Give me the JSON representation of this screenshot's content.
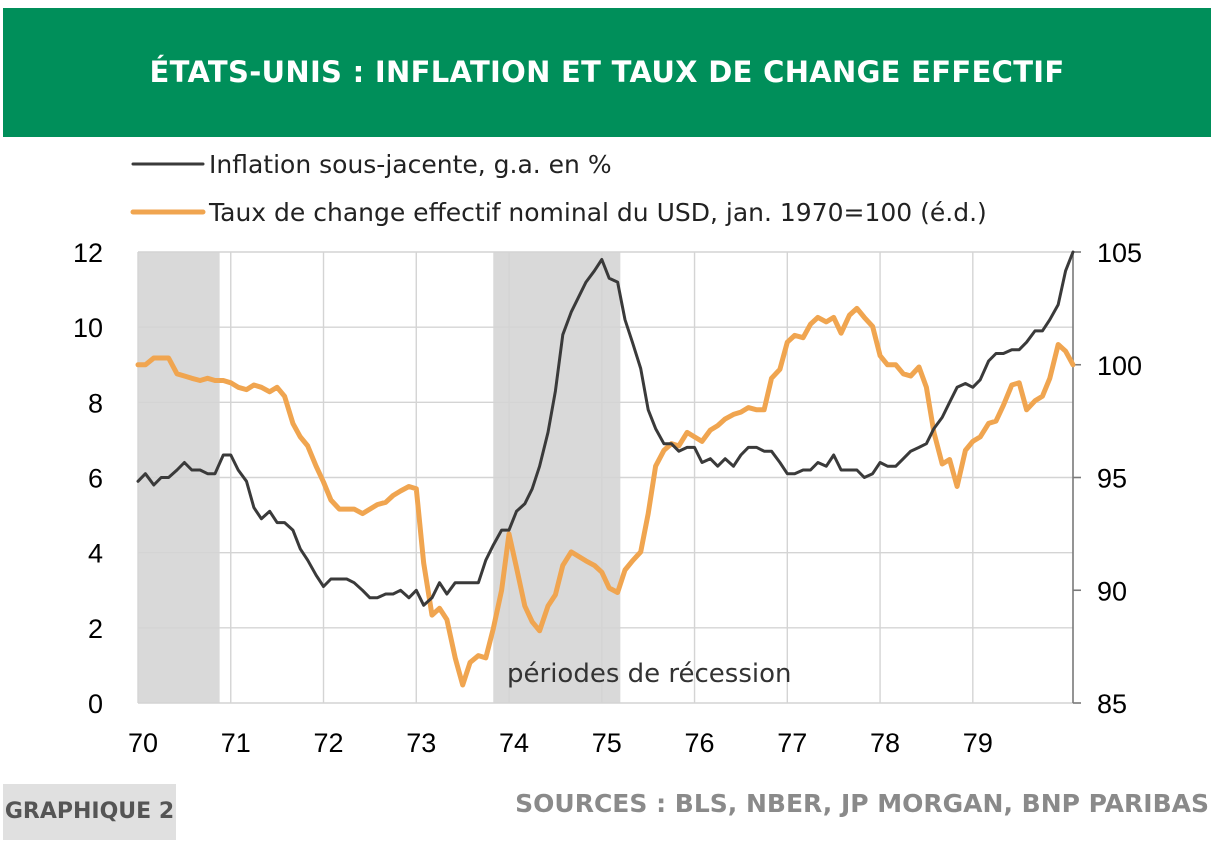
{
  "header": {
    "title": "ÉTATS-UNIS : INFLATION ET TAUX DE CHANGE EFFECTIF",
    "background": "#008f5a"
  },
  "footer": {
    "badge": "GRAPHIQUE 2",
    "sources": "SOURCES : BLS, NBER, JP MORGAN, BNP PARIBAS"
  },
  "chart_data": {
    "type": "line",
    "title": "ÉTATS-UNIS : INFLATION ET TAUX DE CHANGE EFFECTIF",
    "x_tick_labels": [
      "70",
      "71",
      "72",
      "73",
      "74",
      "75",
      "76",
      "77",
      "78",
      "79"
    ],
    "y_left": {
      "ticks": [
        "0",
        "2",
        "4",
        "6",
        "8",
        "10",
        "12"
      ],
      "range": [
        0,
        12
      ]
    },
    "y_right": {
      "ticks": [
        "85",
        "90",
        "95",
        "100",
        "105"
      ],
      "range": [
        85,
        105
      ]
    },
    "grid": true,
    "legend_position": "top-left",
    "annotation": "périodes de récession",
    "recessions": [
      [
        1970.0,
        1970.88
      ],
      [
        1973.83,
        1975.2
      ]
    ],
    "series": [
      {
        "name": "Inflation sous-jacente, g.a. en %",
        "axis": "left",
        "color": "#3a3a3a",
        "points": [
          [
            1970.0,
            5.9
          ],
          [
            1970.08,
            6.1
          ],
          [
            1970.17,
            5.8
          ],
          [
            1970.25,
            6.0
          ],
          [
            1970.33,
            6.0
          ],
          [
            1970.42,
            6.2
          ],
          [
            1970.5,
            6.4
          ],
          [
            1970.58,
            6.2
          ],
          [
            1970.67,
            6.2
          ],
          [
            1970.75,
            6.1
          ],
          [
            1970.83,
            6.1
          ],
          [
            1970.92,
            6.6
          ],
          [
            1971.0,
            6.6
          ],
          [
            1971.08,
            6.2
          ],
          [
            1971.17,
            5.9
          ],
          [
            1971.25,
            5.2
          ],
          [
            1971.33,
            4.9
          ],
          [
            1971.42,
            5.1
          ],
          [
            1971.5,
            4.8
          ],
          [
            1971.58,
            4.8
          ],
          [
            1971.67,
            4.6
          ],
          [
            1971.75,
            4.1
          ],
          [
            1971.83,
            3.8
          ],
          [
            1971.92,
            3.4
          ],
          [
            1972.0,
            3.1
          ],
          [
            1972.08,
            3.3
          ],
          [
            1972.17,
            3.3
          ],
          [
            1972.25,
            3.3
          ],
          [
            1972.33,
            3.2
          ],
          [
            1972.42,
            3.0
          ],
          [
            1972.5,
            2.8
          ],
          [
            1972.58,
            2.8
          ],
          [
            1972.67,
            2.9
          ],
          [
            1972.75,
            2.9
          ],
          [
            1972.83,
            3.0
          ],
          [
            1972.92,
            2.8
          ],
          [
            1973.0,
            3.0
          ],
          [
            1973.08,
            2.6
          ],
          [
            1973.17,
            2.8
          ],
          [
            1973.25,
            3.2
          ],
          [
            1973.33,
            2.9
          ],
          [
            1973.42,
            3.2
          ],
          [
            1973.5,
            3.2
          ],
          [
            1973.58,
            3.2
          ],
          [
            1973.67,
            3.2
          ],
          [
            1973.75,
            3.8
          ],
          [
            1973.83,
            4.2
          ],
          [
            1973.92,
            4.6
          ],
          [
            1974.0,
            4.6
          ],
          [
            1974.08,
            5.1
          ],
          [
            1974.17,
            5.3
          ],
          [
            1974.25,
            5.7
          ],
          [
            1974.33,
            6.3
          ],
          [
            1974.42,
            7.2
          ],
          [
            1974.5,
            8.3
          ],
          [
            1974.58,
            9.8
          ],
          [
            1974.67,
            10.4
          ],
          [
            1974.75,
            10.8
          ],
          [
            1974.83,
            11.2
          ],
          [
            1974.92,
            11.5
          ],
          [
            1975.0,
            11.8
          ],
          [
            1975.08,
            11.3
          ],
          [
            1975.17,
            11.2
          ],
          [
            1975.25,
            10.2
          ],
          [
            1975.33,
            9.6
          ],
          [
            1975.42,
            8.9
          ],
          [
            1975.5,
            7.8
          ],
          [
            1975.58,
            7.3
          ],
          [
            1975.67,
            6.9
          ],
          [
            1975.75,
            6.9
          ],
          [
            1975.83,
            6.7
          ],
          [
            1975.92,
            6.8
          ],
          [
            1976.0,
            6.8
          ],
          [
            1976.08,
            6.4
          ],
          [
            1976.17,
            6.5
          ],
          [
            1976.25,
            6.3
          ],
          [
            1976.33,
            6.5
          ],
          [
            1976.42,
            6.3
          ],
          [
            1976.5,
            6.6
          ],
          [
            1976.58,
            6.8
          ],
          [
            1976.67,
            6.8
          ],
          [
            1976.75,
            6.7
          ],
          [
            1976.83,
            6.7
          ],
          [
            1976.92,
            6.4
          ],
          [
            1977.0,
            6.1
          ],
          [
            1977.08,
            6.1
          ],
          [
            1977.17,
            6.2
          ],
          [
            1977.25,
            6.2
          ],
          [
            1977.33,
            6.4
          ],
          [
            1977.42,
            6.3
          ],
          [
            1977.5,
            6.6
          ],
          [
            1977.58,
            6.2
          ],
          [
            1977.67,
            6.2
          ],
          [
            1977.75,
            6.2
          ],
          [
            1977.83,
            6.0
          ],
          [
            1977.92,
            6.1
          ],
          [
            1978.0,
            6.4
          ],
          [
            1978.08,
            6.3
          ],
          [
            1978.17,
            6.3
          ],
          [
            1978.25,
            6.5
          ],
          [
            1978.33,
            6.7
          ],
          [
            1978.42,
            6.8
          ],
          [
            1978.5,
            6.9
          ],
          [
            1978.58,
            7.3
          ],
          [
            1978.67,
            7.6
          ],
          [
            1978.75,
            8.0
          ],
          [
            1978.83,
            8.4
          ],
          [
            1978.92,
            8.5
          ],
          [
            1979.0,
            8.4
          ],
          [
            1979.08,
            8.6
          ],
          [
            1979.17,
            9.1
          ],
          [
            1979.25,
            9.3
          ],
          [
            1979.33,
            9.3
          ],
          [
            1979.42,
            9.4
          ],
          [
            1979.5,
            9.4
          ],
          [
            1979.58,
            9.6
          ],
          [
            1979.67,
            9.9
          ],
          [
            1979.75,
            9.9
          ],
          [
            1979.83,
            10.2
          ],
          [
            1979.92,
            10.6
          ],
          [
            1980.0,
            11.5
          ],
          [
            1980.08,
            12.0
          ]
        ]
      },
      {
        "name": "Taux de change effectif nominal du USD, jan. 1970=100 (é.d.)",
        "axis": "right",
        "color": "#f0a550",
        "points": [
          [
            1970.0,
            100.0
          ],
          [
            1970.08,
            100.0
          ],
          [
            1970.17,
            100.3
          ],
          [
            1970.25,
            100.3
          ],
          [
            1970.33,
            100.3
          ],
          [
            1970.42,
            99.6
          ],
          [
            1970.5,
            99.5
          ],
          [
            1970.58,
            99.4
          ],
          [
            1970.67,
            99.3
          ],
          [
            1970.75,
            99.4
          ],
          [
            1970.83,
            99.3
          ],
          [
            1970.92,
            99.3
          ],
          [
            1971.0,
            99.2
          ],
          [
            1971.08,
            99.0
          ],
          [
            1971.17,
            98.9
          ],
          [
            1971.25,
            99.1
          ],
          [
            1971.33,
            99.0
          ],
          [
            1971.42,
            98.8
          ],
          [
            1971.5,
            99.0
          ],
          [
            1971.58,
            98.6
          ],
          [
            1971.67,
            97.4
          ],
          [
            1971.75,
            96.8
          ],
          [
            1971.83,
            96.4
          ],
          [
            1971.92,
            95.5
          ],
          [
            1972.0,
            94.8
          ],
          [
            1972.08,
            94.0
          ],
          [
            1972.17,
            93.6
          ],
          [
            1972.25,
            93.6
          ],
          [
            1972.33,
            93.6
          ],
          [
            1972.42,
            93.4
          ],
          [
            1972.5,
            93.6
          ],
          [
            1972.58,
            93.8
          ],
          [
            1972.67,
            93.9
          ],
          [
            1972.75,
            94.2
          ],
          [
            1972.83,
            94.4
          ],
          [
            1972.92,
            94.6
          ],
          [
            1973.0,
            94.5
          ],
          [
            1973.08,
            91.2
          ],
          [
            1973.17,
            88.9
          ],
          [
            1973.25,
            89.2
          ],
          [
            1973.33,
            88.7
          ],
          [
            1973.42,
            87.0
          ],
          [
            1973.5,
            85.8
          ],
          [
            1973.58,
            86.8
          ],
          [
            1973.67,
            87.1
          ],
          [
            1973.75,
            87.0
          ],
          [
            1973.83,
            88.3
          ],
          [
            1973.92,
            90.0
          ],
          [
            1974.0,
            92.5
          ],
          [
            1974.08,
            91.0
          ],
          [
            1974.17,
            89.3
          ],
          [
            1974.25,
            88.6
          ],
          [
            1974.33,
            88.2
          ],
          [
            1974.42,
            89.3
          ],
          [
            1974.5,
            89.8
          ],
          [
            1974.58,
            91.1
          ],
          [
            1974.67,
            91.7
          ],
          [
            1974.75,
            91.5
          ],
          [
            1974.83,
            91.3
          ],
          [
            1974.92,
            91.1
          ],
          [
            1975.0,
            90.8
          ],
          [
            1975.08,
            90.1
          ],
          [
            1975.17,
            89.9
          ],
          [
            1975.25,
            90.9
          ],
          [
            1975.33,
            91.3
          ],
          [
            1975.42,
            91.7
          ],
          [
            1975.5,
            93.4
          ],
          [
            1975.58,
            95.5
          ],
          [
            1975.67,
            96.2
          ],
          [
            1975.75,
            96.5
          ],
          [
            1975.83,
            96.4
          ],
          [
            1975.92,
            97.0
          ],
          [
            1976.0,
            96.8
          ],
          [
            1976.08,
            96.6
          ],
          [
            1976.17,
            97.1
          ],
          [
            1976.25,
            97.3
          ],
          [
            1976.33,
            97.6
          ],
          [
            1976.42,
            97.8
          ],
          [
            1976.5,
            97.9
          ],
          [
            1976.58,
            98.1
          ],
          [
            1976.67,
            98.0
          ],
          [
            1976.75,
            98.0
          ],
          [
            1976.83,
            99.4
          ],
          [
            1976.92,
            99.8
          ],
          [
            1977.0,
            101.0
          ],
          [
            1977.08,
            101.3
          ],
          [
            1977.17,
            101.2
          ],
          [
            1977.25,
            101.8
          ],
          [
            1977.33,
            102.1
          ],
          [
            1977.42,
            101.9
          ],
          [
            1977.5,
            102.1
          ],
          [
            1977.58,
            101.4
          ],
          [
            1977.67,
            102.2
          ],
          [
            1977.75,
            102.5
          ],
          [
            1977.83,
            102.1
          ],
          [
            1977.92,
            101.7
          ],
          [
            1978.0,
            100.4
          ],
          [
            1978.08,
            100.0
          ],
          [
            1978.17,
            100.0
          ],
          [
            1978.25,
            99.6
          ],
          [
            1978.33,
            99.5
          ],
          [
            1978.42,
            99.9
          ],
          [
            1978.5,
            99.0
          ],
          [
            1978.58,
            97.0
          ],
          [
            1978.67,
            95.6
          ],
          [
            1978.75,
            95.8
          ],
          [
            1978.83,
            94.6
          ],
          [
            1978.92,
            96.2
          ],
          [
            1979.0,
            96.6
          ],
          [
            1979.08,
            96.8
          ],
          [
            1979.17,
            97.4
          ],
          [
            1979.25,
            97.5
          ],
          [
            1979.33,
            98.2
          ],
          [
            1979.42,
            99.1
          ],
          [
            1979.5,
            99.2
          ],
          [
            1979.58,
            98.0
          ],
          [
            1979.67,
            98.4
          ],
          [
            1979.75,
            98.6
          ],
          [
            1979.83,
            99.4
          ],
          [
            1979.92,
            100.9
          ],
          [
            1980.0,
            100.6
          ],
          [
            1980.08,
            100.0
          ]
        ]
      }
    ]
  }
}
